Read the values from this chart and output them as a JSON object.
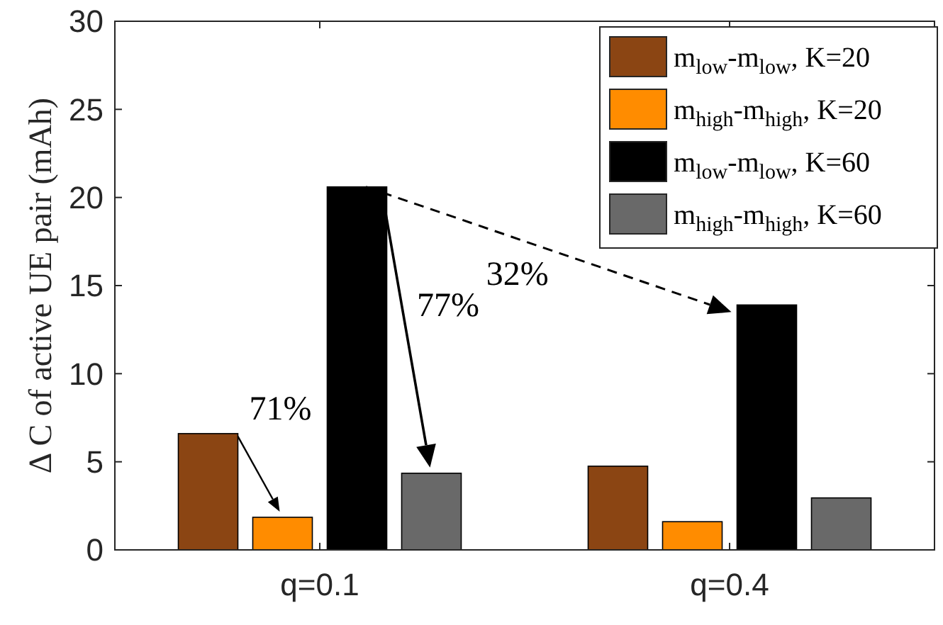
{
  "chart_data": {
    "type": "bar",
    "ylabel": "Δ C of active UE pair (mAh)",
    "categories": [
      "q=0.1",
      "q=0.4"
    ],
    "series": [
      {
        "name": "m$_{low}$-m$_{low}$, K=20",
        "color": "#8b4513",
        "values": [
          6.6,
          4.75
        ]
      },
      {
        "name": "m$_{high}$-m$_{high}$, K=20",
        "color": "#ff8c00",
        "values": [
          1.85,
          1.6
        ]
      },
      {
        "name": "m$_{low}$-m$_{low}$, K=60",
        "color": "#000000",
        "values": [
          20.6,
          13.9
        ]
      },
      {
        "name": "m$_{high}$-m$_{high}$, K=60",
        "color": "#696969",
        "values": [
          4.35,
          2.95
        ]
      }
    ],
    "ylim": [
      0,
      30
    ],
    "yticks": [
      0,
      5,
      10,
      15,
      20,
      25,
      30
    ],
    "legend": "top right",
    "grid": false,
    "annotations": [
      "71%",
      "77%",
      "32%"
    ]
  }
}
